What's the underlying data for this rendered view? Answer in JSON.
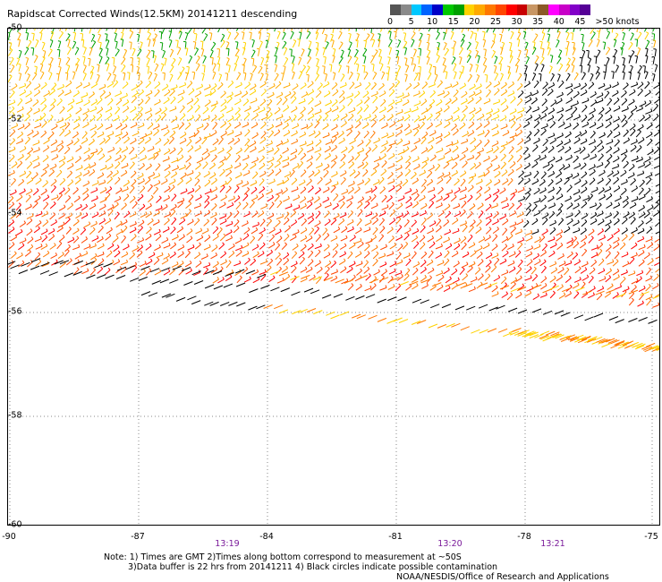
{
  "title": "Rapidscat Corrected Winds(12.5KM) 20141211 descending",
  "legend": {
    "colors": [
      "#555555",
      "#8a8a8a",
      "#00c8ff",
      "#0064ff",
      "#0000c8",
      "#00c800",
      "#00a000",
      "#ffd200",
      "#ffaa00",
      "#ff7800",
      "#ff4600",
      "#ff0000",
      "#c80000",
      "#c89664",
      "#8c5a28",
      "#ff00ff",
      "#c800c8",
      "#8200c8",
      "#550096"
    ],
    "labels": [
      "0",
      "5",
      "10",
      "15",
      "20",
      "25",
      "30",
      "35",
      "40",
      "45",
      ">50 knots"
    ]
  },
  "map": {
    "lat_labels": [
      "-50",
      "-52",
      "-54",
      "-56",
      "-58",
      "-60"
    ],
    "lon_labels": [
      "-90",
      "-87",
      "-84",
      "-81",
      "-78",
      "-75"
    ],
    "times": [
      "13:19",
      "13:20",
      "13:21"
    ]
  },
  "notes": {
    "line1": "Note: 1) Times are GMT 2)Times along bottom correspond to measurement at ~50S",
    "line2": "3)Data buffer is 22 hrs from 20141211 4) Black circles indicate possible contamination",
    "credit": "NOAA/NESDIS/Office of Research and Applications"
  }
}
